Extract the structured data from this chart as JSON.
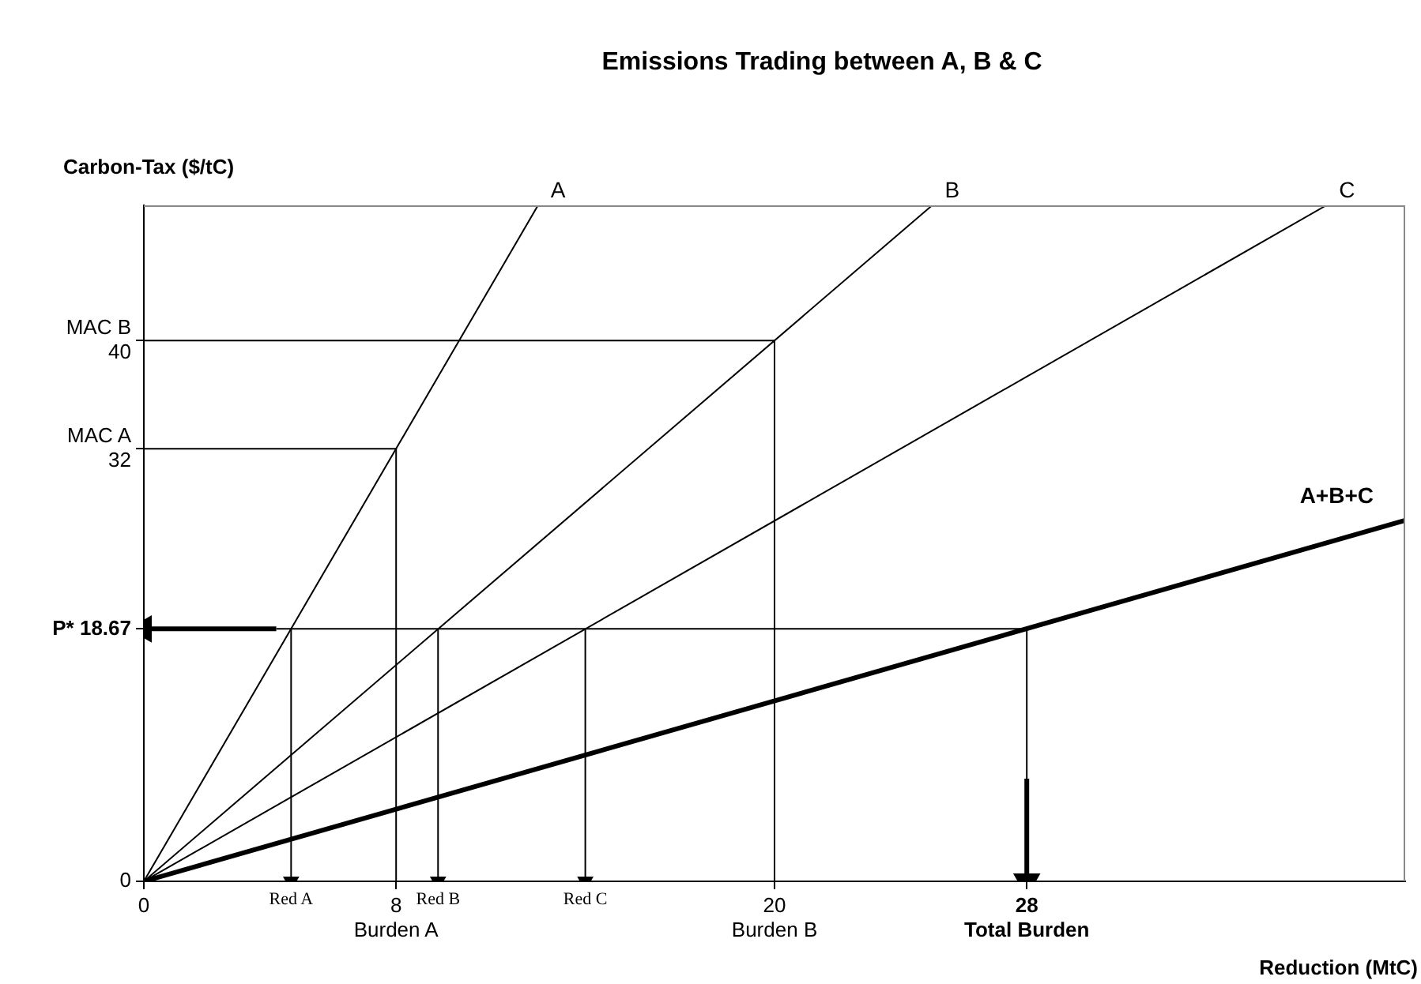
{
  "chart_data": {
    "type": "line",
    "title": "Emissions Trading between A, B & C",
    "xlabel": "Reduction (MtC)",
    "ylabel": "Carbon-Tax ($/tC)",
    "xlim": [
      0,
      40
    ],
    "ylim": [
      0,
      50
    ],
    "xticks": [
      0,
      {
        "value": 8,
        "label": "8\nBurden A"
      },
      {
        "value": 20,
        "label": "20\nBurden B"
      },
      {
        "value": 28,
        "label": "28\nTotal Burden"
      }
    ],
    "yticks": [
      0,
      {
        "value": 18.67,
        "label": "P* 18.67"
      },
      {
        "value": 32,
        "label": "MAC A\n32"
      },
      {
        "value": 40,
        "label": "MAC B\n40"
      }
    ],
    "grid": false,
    "legend": false,
    "series": [
      {
        "name": "A",
        "color": "#000000",
        "x": [
          0,
          12.5
        ],
        "values": [
          0,
          50
        ]
      },
      {
        "name": "B",
        "color": "#000000",
        "x": [
          0,
          25
        ],
        "values": [
          0,
          50
        ]
      },
      {
        "name": "C",
        "color": "#000000",
        "x": [
          0,
          37.5
        ],
        "values": [
          0,
          50
        ]
      },
      {
        "name": "A+B+C",
        "color": "#000000",
        "x": [
          0,
          40
        ],
        "values": [
          0,
          26.7
        ]
      },
      {
        "color": "#000000",
        "x": [
          0,
          8,
          8
        ],
        "values": [
          32,
          32,
          0
        ]
      },
      {
        "color": "#000000",
        "x": [
          0,
          20,
          20
        ],
        "values": [
          40,
          40,
          0
        ]
      },
      {
        "color": "#000000",
        "x": [
          4.2,
          28
        ],
        "values": [
          18.67,
          18.67
        ]
      },
      {
        "color": "#000000",
        "x": [
          4.2,
          0
        ],
        "values": [
          18.67,
          18.67
        ],
        "marker": "triangle"
      },
      {
        "color": "#000000",
        "x": [
          4.67,
          4.67
        ],
        "values": [
          18.67,
          0
        ],
        "marker": "triangle"
      },
      {
        "color": "#000000",
        "x": [
          9.33,
          9.33
        ],
        "values": [
          18.67,
          0
        ],
        "marker": "triangle"
      },
      {
        "color": "#000000",
        "x": [
          14,
          14
        ],
        "values": [
          18.67,
          0
        ],
        "marker": "triangle"
      },
      {
        "color": "#000000",
        "x": [
          28,
          28
        ],
        "values": [
          18.67,
          7.6
        ]
      },
      {
        "color": "#000000",
        "x": [
          28,
          28
        ],
        "values": [
          7.6,
          0
        ],
        "marker": "triangle"
      }
    ],
    "annotations": [
      {
        "text": "Red A",
        "x": 4.67,
        "y": 0
      },
      {
        "text": "Red B",
        "x": 9.33,
        "y": 0
      },
      {
        "text": "Red C",
        "x": 14,
        "y": 0
      }
    ]
  }
}
